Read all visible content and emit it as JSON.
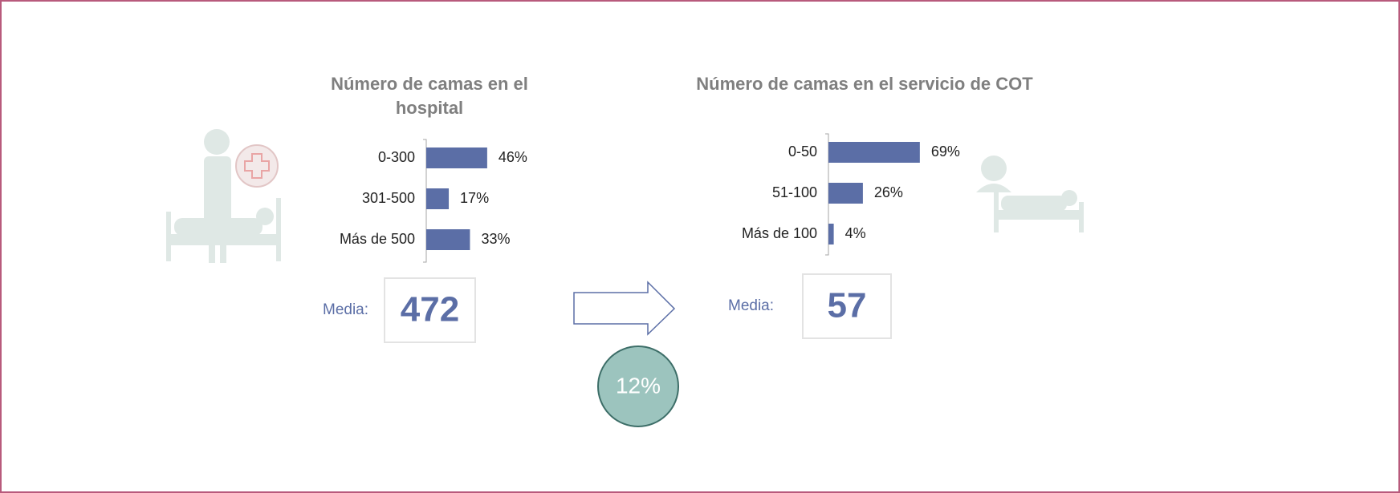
{
  "chart_data": [
    {
      "type": "bar",
      "orientation": "horizontal",
      "title": "Número de camas en el hospital",
      "categories": [
        "0-300",
        "301-500",
        "Más de 500"
      ],
      "values": [
        46,
        17,
        33
      ],
      "value_labels": [
        "46%",
        "17%",
        "33%"
      ],
      "color": "#5b6ea6",
      "mean_label": "Media:",
      "mean": 472
    },
    {
      "type": "bar",
      "orientation": "horizontal",
      "title": "Número de camas en el servicio de COT",
      "categories": [
        "0-50",
        "51-100",
        "Más de 100"
      ],
      "values": [
        69,
        26,
        4
      ],
      "value_labels": [
        "69%",
        "26%",
        "4%"
      ],
      "color": "#5b6ea6",
      "mean_label": "Media:",
      "mean": 57
    }
  ],
  "ratio": {
    "value": 12,
    "label": "12%"
  }
}
